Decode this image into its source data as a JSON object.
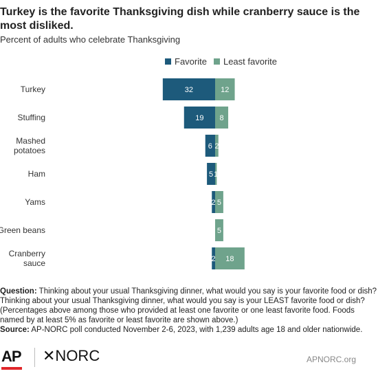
{
  "title": "Turkey is the favorite Thanksgiving dish while cranberry sauce is the most disliked.",
  "subtitle": "Percent of adults who celebrate Thanksgiving",
  "legend": {
    "favorite": "Favorite",
    "least": "Least favorite"
  },
  "colors": {
    "favorite": "#1d5a7b",
    "least": "#6fa38c"
  },
  "notes": {
    "question_label": "Question:",
    "question_text": "Thinking about your usual Thanksgiving dinner, what would you say is your favorite food or dish? Thinking about your usual Thanksgiving dinner, what would you say is your LEAST favorite food or dish? (Percentages above among those who provided at least one favorite or one least favorite food. Foods named by at least 5% as favorite or least favorite are shown above.)",
    "source_label": "Source:",
    "source_text": "AP-NORC poll conducted November 2-6, 2023, with 1,239 adults age 18 and older nationwide."
  },
  "footer": {
    "ap": "AP",
    "norc": "✕NORC",
    "site": "APNORC.org"
  },
  "chart_data": {
    "type": "bar",
    "orientation": "diverging-horizontal",
    "categories": [
      "Turkey",
      "Stuffing",
      "Mashed potatoes",
      "Ham",
      "Yams",
      "Green beans",
      "Cranberry sauce"
    ],
    "category_lines": [
      [
        "Turkey"
      ],
      [
        "Stuffing"
      ],
      [
        "Mashed",
        "potatoes"
      ],
      [
        "Ham"
      ],
      [
        "Yams"
      ],
      [
        "Green beans"
      ],
      [
        "Cranberry",
        "sauce"
      ]
    ],
    "series": [
      {
        "name": "Favorite",
        "values": [
          32,
          19,
          6,
          5,
          2,
          null,
          2
        ]
      },
      {
        "name": "Least favorite",
        "values": [
          12,
          8,
          2,
          1,
          5,
          5,
          18
        ]
      }
    ]
  }
}
